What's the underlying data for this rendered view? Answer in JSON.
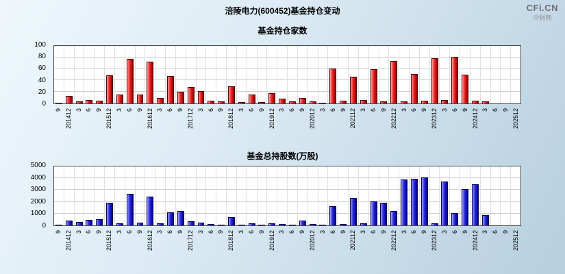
{
  "title": "涪陵电力(600452)基金持仓变动",
  "logo": {
    "text": "CFi.CN",
    "subtext": "中财网"
  },
  "colors": {
    "background_top": "#eff7fc",
    "background_bottom": "#b7cfdf",
    "plot_background": "#ffffff",
    "grid": "#cfcfcf",
    "axis_border": "#4a4a4a",
    "bar_red": "#ee2222",
    "bar_blue": "#2a2ae0",
    "text": "#000000"
  },
  "chart_data": [
    {
      "type": "bar",
      "title": "基金持仓家数",
      "xlabel": "",
      "ylabel": "",
      "ylim": [
        0,
        100
      ],
      "yticks": [
        0,
        20,
        40,
        60,
        80,
        100
      ],
      "grid": true,
      "legend_position": "none",
      "bar_color": "#ee2222",
      "categories": [
        "2014-09",
        "2014-12",
        "2015-03",
        "2015-06",
        "2015-09",
        "2015-12",
        "2016-03",
        "2016-06",
        "2016-09",
        "2016-12",
        "2017-03",
        "2017-06",
        "2017-09",
        "2017-12",
        "2018-03",
        "2018-06",
        "2018-09",
        "2018-12",
        "2019-03",
        "2019-06",
        "2019-09",
        "2019-12",
        "2020-03",
        "2020-06",
        "2020-09",
        "2020-12",
        "2021-03",
        "2021-06",
        "2021-09",
        "2021-12",
        "2022-03",
        "2022-06",
        "2022-09",
        "2022-12",
        "2023-03",
        "2023-06",
        "2023-09",
        "2023-12",
        "2024-03",
        "2024-06",
        "2024-09",
        "2024-12",
        "2025-03",
        "2025-06",
        "2025-09",
        "2025-12"
      ],
      "tick_labels": [
        "9",
        "201412",
        "3",
        "6",
        "9",
        "201512",
        "3",
        "6",
        "9",
        "201612",
        "3",
        "6",
        "9",
        "201712",
        "3",
        "6",
        "9",
        "201812",
        "3",
        "6",
        "9",
        "201912",
        "3",
        "6",
        "9",
        "202012",
        "3",
        "6",
        "9",
        "202112",
        "3",
        "6",
        "9",
        "202212",
        "3",
        "6",
        "9",
        "202312",
        "3",
        "6",
        "9",
        "202412",
        "3",
        "6",
        "9",
        "202512"
      ],
      "values": [
        1,
        13,
        4,
        6,
        5,
        49,
        15,
        77,
        16,
        73,
        9,
        48,
        20,
        29,
        22,
        5,
        3,
        30,
        2,
        16,
        2,
        18,
        8,
        3,
        9,
        4,
        1,
        61,
        5,
        46,
        6,
        59,
        4,
        74,
        3,
        51,
        5,
        79,
        6,
        81,
        50,
        5,
        4,
        0,
        0,
        0
      ]
    },
    {
      "type": "bar",
      "title": "基金总持股数(万股)",
      "xlabel": "",
      "ylabel": "",
      "ylim": [
        0,
        5000
      ],
      "yticks": [
        0,
        1000,
        2000,
        3000,
        4000,
        5000
      ],
      "grid": true,
      "legend_position": "none",
      "bar_color": "#2a2ae0",
      "categories": [
        "2014-09",
        "2014-12",
        "2015-03",
        "2015-06",
        "2015-09",
        "2015-12",
        "2016-03",
        "2016-06",
        "2016-09",
        "2016-12",
        "2017-03",
        "2017-06",
        "2017-09",
        "2017-12",
        "2018-03",
        "2018-06",
        "2018-09",
        "2018-12",
        "2019-03",
        "2019-06",
        "2019-09",
        "2019-12",
        "2020-03",
        "2020-06",
        "2020-09",
        "2020-12",
        "2021-03",
        "2021-06",
        "2021-09",
        "2021-12",
        "2022-03",
        "2022-06",
        "2022-09",
        "2022-12",
        "2023-03",
        "2023-06",
        "2023-09",
        "2023-12",
        "2024-03",
        "2024-06",
        "2024-09",
        "2024-12",
        "2025-03",
        "2025-06",
        "2025-09",
        "2025-12"
      ],
      "tick_labels": [
        "9",
        "201412",
        "3",
        "6",
        "9",
        "201512",
        "3",
        "6",
        "9",
        "201612",
        "3",
        "6",
        "9",
        "201712",
        "3",
        "6",
        "9",
        "201812",
        "3",
        "6",
        "9",
        "201912",
        "3",
        "6",
        "9",
        "202012",
        "3",
        "6",
        "9",
        "202112",
        "3",
        "6",
        "9",
        "202212",
        "3",
        "6",
        "9",
        "202312",
        "3",
        "6",
        "9",
        "202412",
        "3",
        "6",
        "9",
        "202512"
      ],
      "values": [
        20,
        380,
        300,
        450,
        500,
        1900,
        160,
        2650,
        230,
        2450,
        160,
        1100,
        1250,
        330,
        210,
        120,
        60,
        700,
        40,
        160,
        40,
        170,
        110,
        60,
        400,
        90,
        30,
        1650,
        130,
        2300,
        160,
        2050,
        1900,
        1250,
        3900,
        3950,
        4050,
        150,
        3750,
        1050,
        3100,
        3500,
        850,
        0,
        0,
        0
      ]
    }
  ]
}
